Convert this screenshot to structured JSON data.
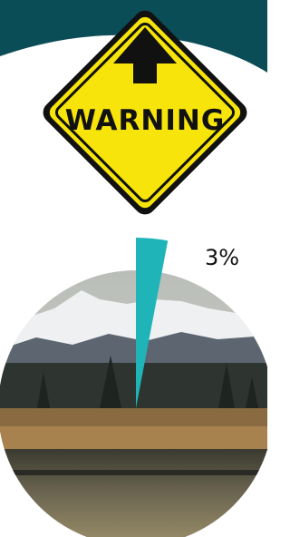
{
  "sign": {
    "text": "WARNING"
  },
  "chart_data": {
    "type": "pie",
    "values": [
      3
    ],
    "value_labels": [
      "3%"
    ],
    "color": "#1fb5b8"
  }
}
